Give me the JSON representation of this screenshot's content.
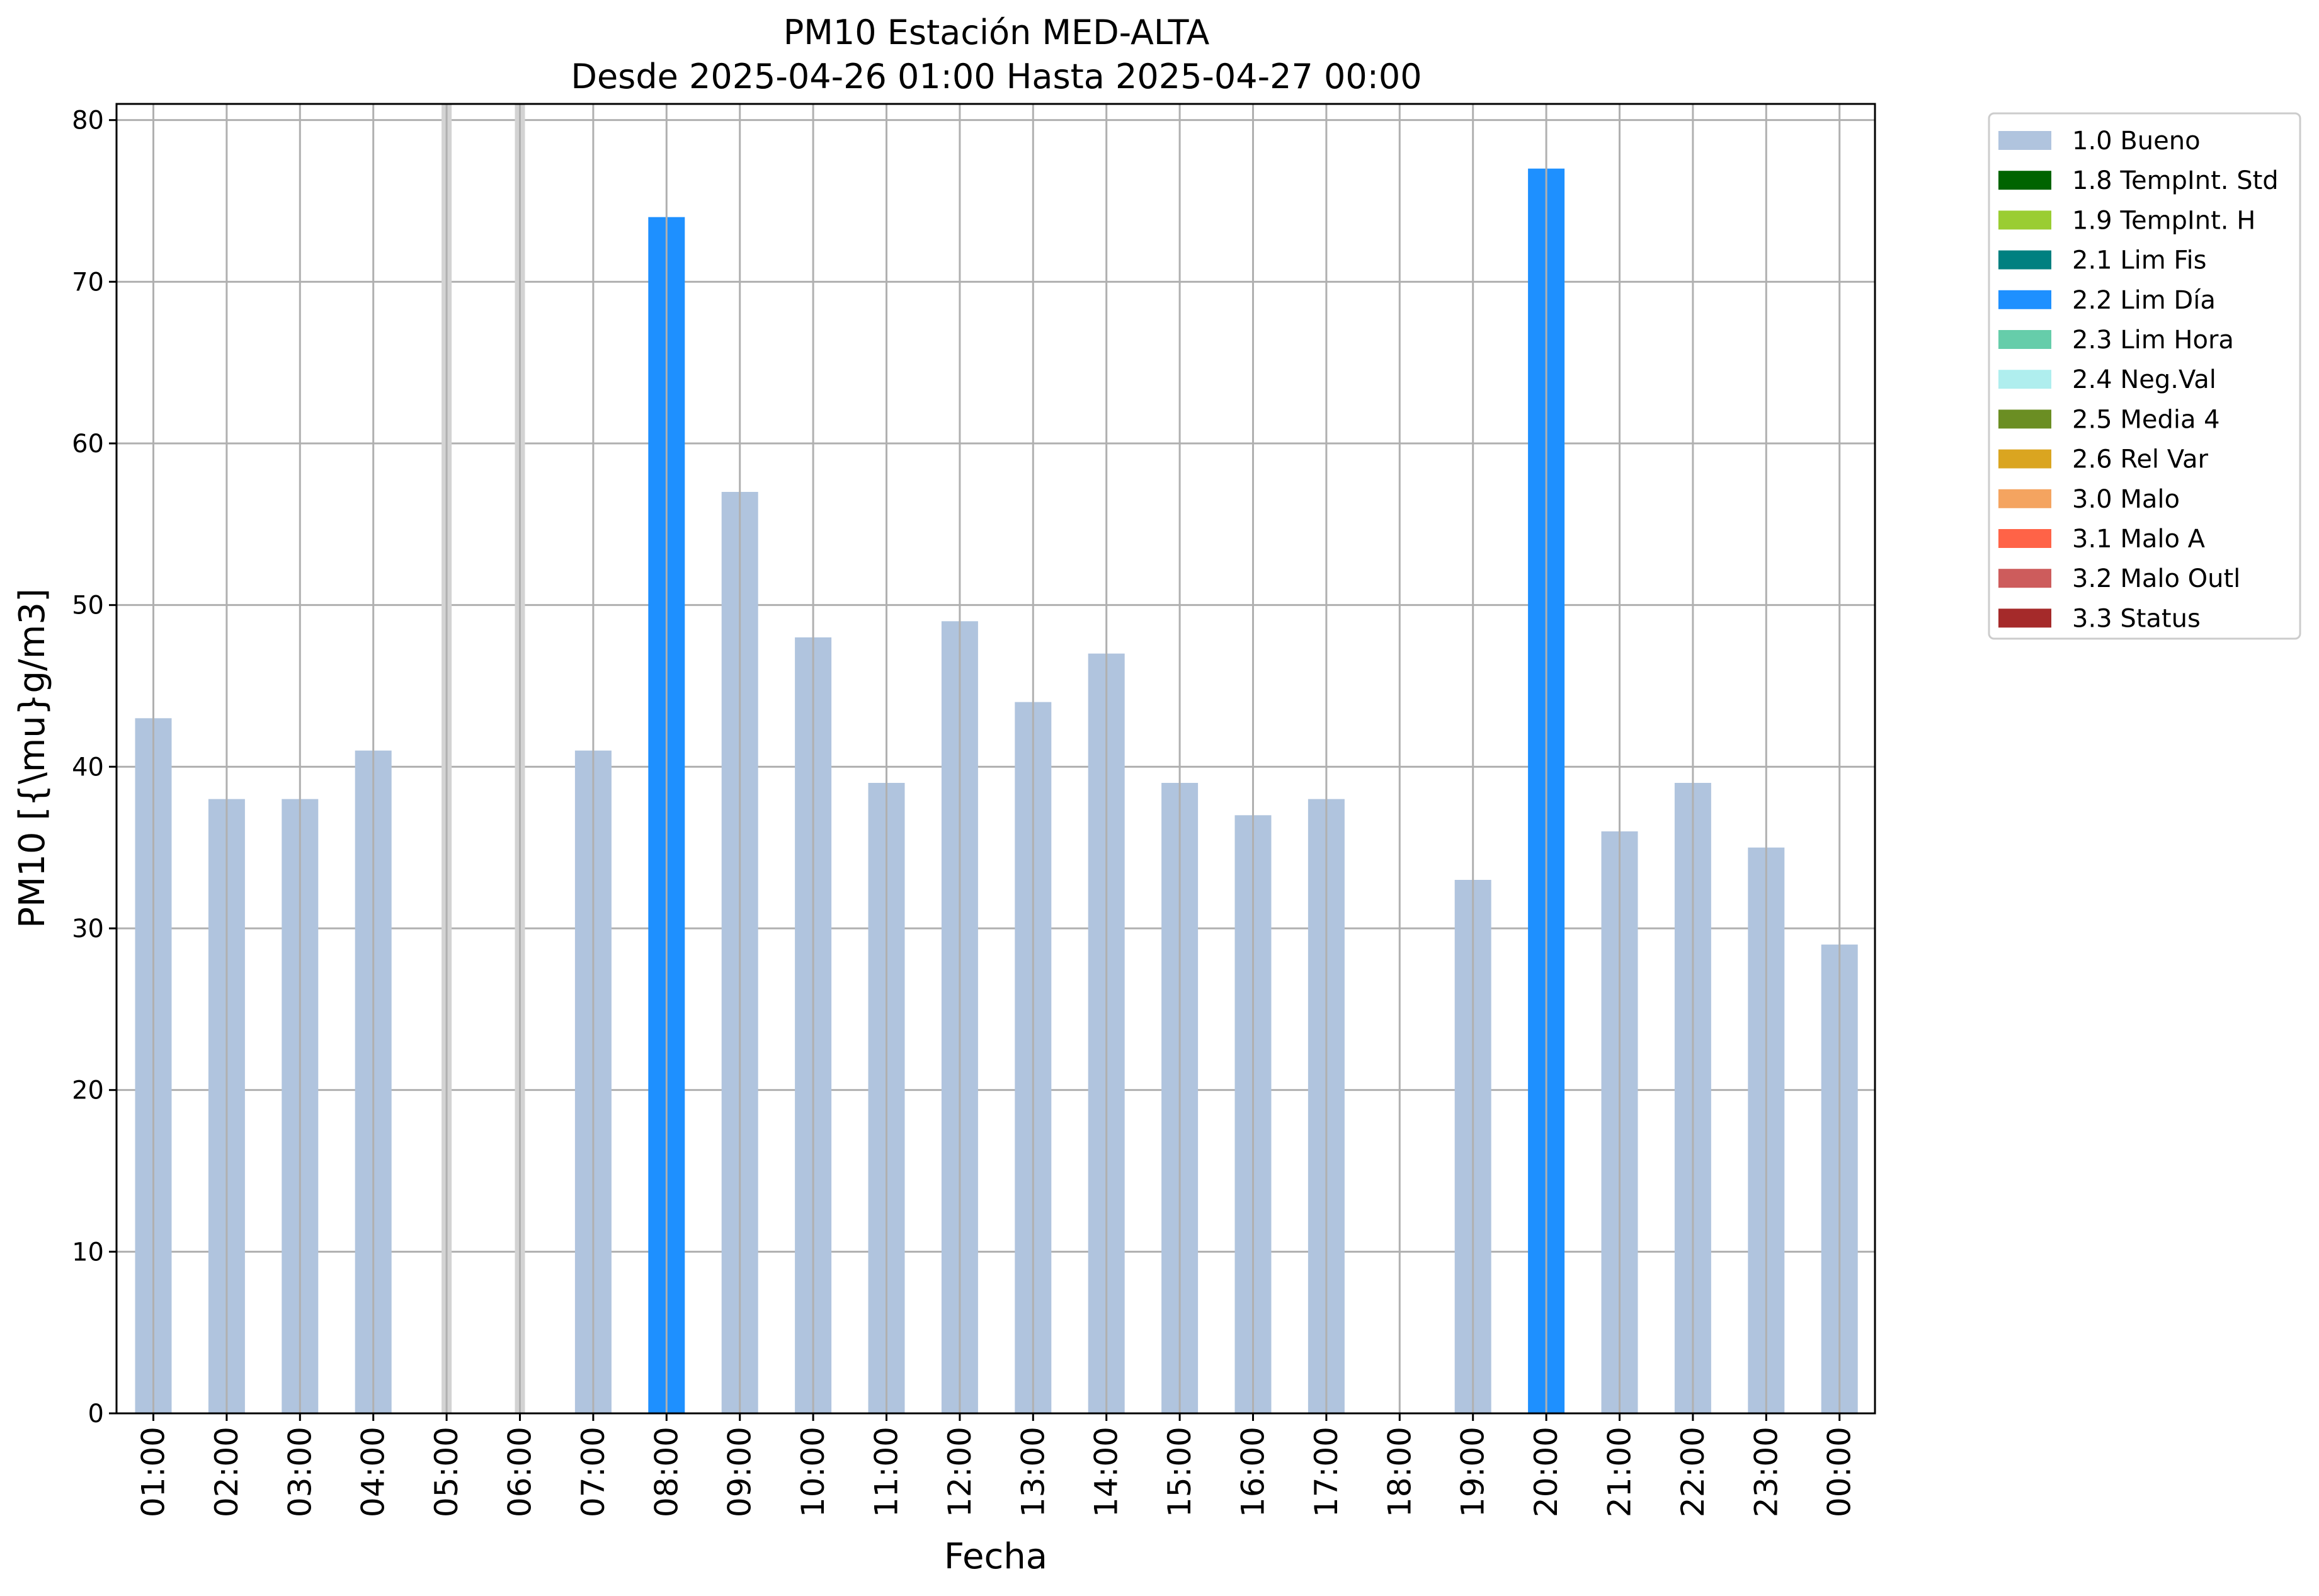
{
  "chart_data": {
    "type": "bar",
    "title": "PM10 Estación MED-ALTA",
    "subtitle": "Desde 2025-04-26 01:00 Hasta 2025-04-27 00:00",
    "xlabel": "Fecha",
    "ylabel": "PM10 [{\\mu}g/m3]",
    "ylim": [
      0,
      81
    ],
    "yticks": [
      0,
      10,
      20,
      30,
      40,
      50,
      60,
      70,
      80
    ],
    "grid": true,
    "legend_position": "outside-right-top",
    "categories": [
      "01:00",
      "02:00",
      "03:00",
      "04:00",
      "05:00",
      "06:00",
      "07:00",
      "08:00",
      "09:00",
      "10:00",
      "11:00",
      "12:00",
      "13:00",
      "14:00",
      "15:00",
      "16:00",
      "17:00",
      "18:00",
      "19:00",
      "20:00",
      "21:00",
      "22:00",
      "23:00",
      "00:00"
    ],
    "values": [
      43,
      38,
      38,
      41,
      null,
      null,
      41,
      74,
      57,
      48,
      39,
      49,
      44,
      47,
      39,
      37,
      38,
      null,
      33,
      77,
      36,
      39,
      35,
      29
    ],
    "flags": [
      "1.0 Bueno",
      "1.0 Bueno",
      "1.0 Bueno",
      "1.0 Bueno",
      null,
      null,
      "1.0 Bueno",
      "2.2 Lim Día",
      "1.0 Bueno",
      "1.0 Bueno",
      "1.0 Bueno",
      "1.0 Bueno",
      "1.0 Bueno",
      "1.0 Bueno",
      "1.0 Bueno",
      "1.0 Bueno",
      "1.0 Bueno",
      null,
      "1.0 Bueno",
      "2.2 Lim Día",
      "1.0 Bueno",
      "1.0 Bueno",
      "1.0 Bueno",
      "1.0 Bueno"
    ],
    "missing_markers": [
      "05:00",
      "06:00"
    ],
    "legend": [
      {
        "label": "1.0 Bueno",
        "color": "#b0c4de"
      },
      {
        "label": "1.8 TempInt. Std",
        "color": "#006400"
      },
      {
        "label": "1.9 TempInt. H",
        "color": "#9acd32"
      },
      {
        "label": "2.1 Lim Fis",
        "color": "#008080"
      },
      {
        "label": "2.2 Lim Día",
        "color": "#1e90ff"
      },
      {
        "label": "2.3 Lim Hora",
        "color": "#66cdaa"
      },
      {
        "label": "2.4 Neg.Val",
        "color": "#afeeee"
      },
      {
        "label": "2.5 Media 4",
        "color": "#6b8e23"
      },
      {
        "label": "2.6 Rel Var",
        "color": "#daa520"
      },
      {
        "label": "3.0 Malo",
        "color": "#f4a460"
      },
      {
        "label": "3.1 Malo A",
        "color": "#ff6347"
      },
      {
        "label": "3.2 Malo Outl",
        "color": "#cd5c5c"
      },
      {
        "label": "3.3 Status",
        "color": "#a52a2a"
      }
    ]
  }
}
